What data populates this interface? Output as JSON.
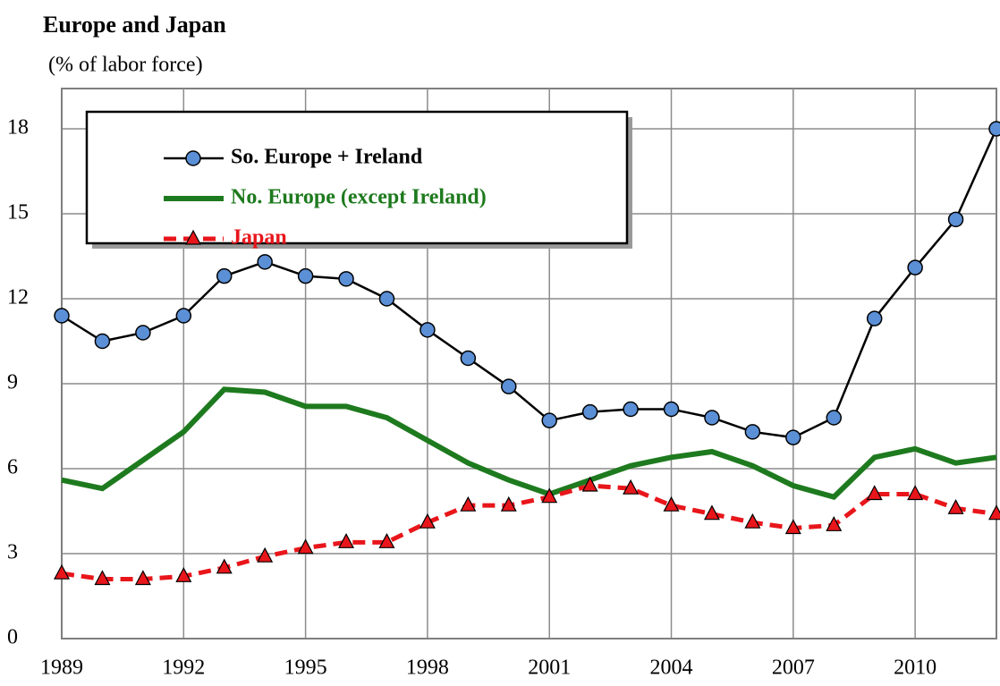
{
  "chart_data": {
    "type": "line",
    "title": "Europe and Japan",
    "subtitle": "(% of labor force)",
    "x": [
      1989,
      1990,
      1991,
      1992,
      1993,
      1994,
      1995,
      1996,
      1997,
      1998,
      1999,
      2000,
      2001,
      2002,
      2003,
      2004,
      2005,
      2006,
      2007,
      2008,
      2009,
      2010,
      2011,
      2012
    ],
    "xlim": [
      1989,
      2012
    ],
    "xticks": [
      1989,
      1992,
      1995,
      1998,
      2001,
      2004,
      2007,
      2010
    ],
    "ylim": [
      0,
      18
    ],
    "yticks": [
      0,
      3,
      6,
      9,
      12,
      15,
      18
    ],
    "grid": true,
    "legend": "upper left",
    "series": [
      {
        "name": "So. Europe + Ireland",
        "color": "#000000",
        "marker": "circle",
        "marker_color": "#5b8fd6",
        "dashed": false,
        "values": [
          11.4,
          10.5,
          10.8,
          11.4,
          12.8,
          13.3,
          12.8,
          12.7,
          12.0,
          10.9,
          9.9,
          8.9,
          7.7,
          8.0,
          8.1,
          8.1,
          7.8,
          7.3,
          7.1,
          7.8,
          11.3,
          13.1,
          14.8,
          18.0
        ]
      },
      {
        "name": "No. Europe (except Ireland)",
        "color": "#1e7a1e",
        "marker": "none",
        "dashed": false,
        "values": [
          5.6,
          5.3,
          6.3,
          7.3,
          8.8,
          8.7,
          8.2,
          8.2,
          7.8,
          7.0,
          6.2,
          5.6,
          5.1,
          5.6,
          6.1,
          6.4,
          6.6,
          6.1,
          5.4,
          5.0,
          6.4,
          6.7,
          6.2,
          6.4
        ]
      },
      {
        "name": "Japan",
        "color": "#e8161b",
        "marker": "triangle",
        "marker_color": "#e8161b",
        "dashed": true,
        "values": [
          2.3,
          2.1,
          2.1,
          2.2,
          2.5,
          2.9,
          3.2,
          3.4,
          3.4,
          4.1,
          4.7,
          4.7,
          5.0,
          5.4,
          5.3,
          4.7,
          4.4,
          4.1,
          3.9,
          4.0,
          5.1,
          5.1,
          4.6,
          4.4
        ]
      }
    ]
  }
}
